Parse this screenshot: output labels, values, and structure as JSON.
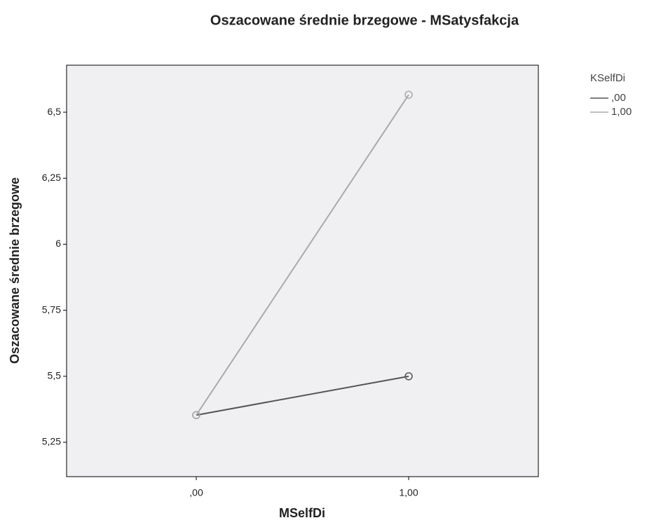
{
  "chart_data": {
    "type": "line",
    "title": "Oszacowane średnie brzegowe - MSatysfakcja",
    "x_label": "MSelfDi",
    "y_label": "Oszacowane średnie brzegowe",
    "legend_title": "KSelfDi",
    "categories": [
      ",00",
      "1,00"
    ],
    "series": [
      {
        "name": ",00",
        "color": "#555555",
        "values": [
          5.353,
          5.5
        ]
      },
      {
        "name": "1,00",
        "color": "#aaaaaa",
        "values": [
          5.353,
          6.566
        ]
      }
    ],
    "ylim": [
      5.12,
      6.678
    ],
    "yticks": [
      {
        "value": 5.25,
        "label": "5,25"
      },
      {
        "value": 5.5,
        "label": "5,5"
      },
      {
        "value": 5.75,
        "label": "5,75"
      },
      6,
      {
        "value": 6.25,
        "label": "6,25"
      },
      {
        "value": 6.5,
        "label": "6,5"
      }
    ],
    "legend_position": "top-right",
    "background": "#f0f0f3"
  }
}
